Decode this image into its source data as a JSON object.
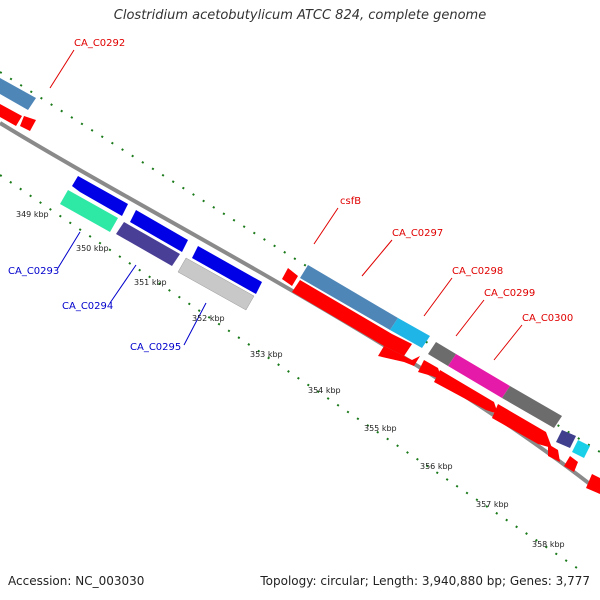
{
  "title": "Clostridium acetobutylicum ATCC 824, complete genome",
  "footer": {
    "accession": "Accession: NC_003030",
    "summary": "Topology: circular; Length: 3,940,880 bp; Genes: 3,777"
  },
  "colors": {
    "backbone": "#888888",
    "tick": "#1a7a1a",
    "forward_label": "#e00000",
    "reverse_label": "#0000cc",
    "cds_red": "#ff0000"
  },
  "ticks": [
    "349 kbp",
    "350 kbp",
    "351 kbp",
    "352 kbp",
    "353 kbp",
    "354 kbp",
    "355 kbp",
    "356 kbp",
    "357 kbp",
    "358 kbp"
  ],
  "genes": {
    "forward": [
      "CA_C0292",
      "csfB",
      "CA_C0297",
      "CA_C0298",
      "CA_C0299",
      "CA_C0300"
    ],
    "reverse": [
      "CA_C0293",
      "CA_C0294",
      "CA_C0295"
    ]
  }
}
